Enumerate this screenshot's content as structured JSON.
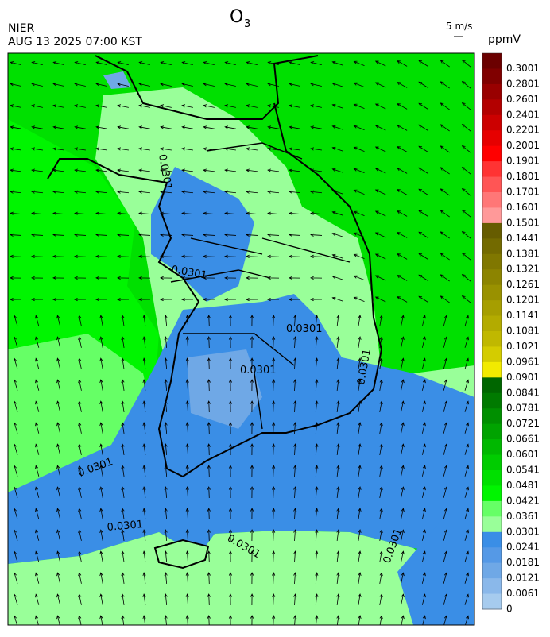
{
  "header": {
    "title": "O",
    "title_sub": "3",
    "agency": "NIER",
    "datetime": "AUG 13 2025 07:00 KST",
    "wind_scale": "5 m/s"
  },
  "colorbar": {
    "unit": "ppmV",
    "labels": [
      "0.3001",
      "0.2801",
      "0.2601",
      "0.2401",
      "0.2201",
      "0.2001",
      "0.1901",
      "0.1801",
      "0.1701",
      "0.1601",
      "0.1501",
      "0.1441",
      "0.1381",
      "0.1321",
      "0.1261",
      "0.1201",
      "0.1141",
      "0.1081",
      "0.1021",
      "0.0961",
      "0.0901",
      "0.0841",
      "0.0781",
      "0.0721",
      "0.0661",
      "0.0601",
      "0.0541",
      "0.0481",
      "0.0421",
      "0.0361",
      "0.0301",
      "0.0241",
      "0.0181",
      "0.0121",
      "0.0061",
      "0"
    ],
    "colors": [
      "#6b0000",
      "#800000",
      "#990000",
      "#b30000",
      "#cc0000",
      "#e60000",
      "#ff0000",
      "#ff3333",
      "#ff5555",
      "#ff7777",
      "#ff9999",
      "#665c00",
      "#736a00",
      "#807700",
      "#8c8400",
      "#999100",
      "#a69e00",
      "#b3ab00",
      "#c0b800",
      "#d4cc00",
      "#f2ea00",
      "#006600",
      "#007a00",
      "#008f00",
      "#00a300",
      "#00b800",
      "#00cc00",
      "#00e000",
      "#00f500",
      "#66ff66",
      "#99ff99",
      "#3a8ee6",
      "#5599e6",
      "#6fa8e6",
      "#8ab8ea",
      "#a6cbee"
    ]
  },
  "contour_labels": [
    "0.0301",
    "0.0301",
    "0.0301",
    "0.0301",
    "0.0301",
    "0.0301",
    "0.0301",
    "0.0301",
    "0.0301"
  ]
}
